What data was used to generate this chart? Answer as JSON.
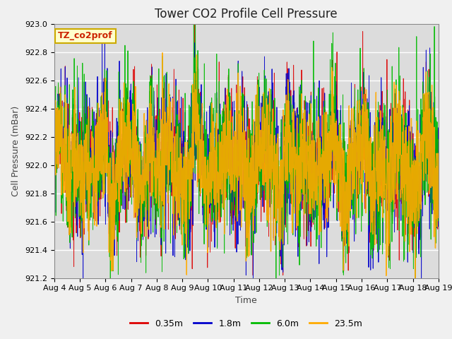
{
  "title": "Tower CO2 Profile Cell Pressure",
  "ylabel": "Cell Pressure (mBar)",
  "xlabel": "Time",
  "annotation": "TZ_co2prof",
  "ylim": [
    921.2,
    923.0
  ],
  "yticks": [
    921.2,
    921.4,
    921.6,
    921.8,
    922.0,
    922.2,
    922.4,
    922.6,
    922.8,
    923.0
  ],
  "x_tick_labels": [
    "Aug 4",
    "Aug 5",
    "Aug 6",
    "Aug 7",
    "Aug 8",
    "Aug 9",
    "Aug 10",
    "Aug 11",
    "Aug 12",
    "Aug 13",
    "Aug 14",
    "Aug 15",
    "Aug 16",
    "Aug 17",
    "Aug 18",
    "Aug 19"
  ],
  "series": [
    {
      "label": "0.35m",
      "color": "#dd0000",
      "lw": 0.7
    },
    {
      "label": "1.8m",
      "color": "#0000cc",
      "lw": 0.7
    },
    {
      "label": "6.0m",
      "color": "#00bb00",
      "lw": 0.7
    },
    {
      "label": "23.5m",
      "color": "#ffaa00",
      "lw": 1.0
    }
  ],
  "n_points": 2000,
  "base_mean": 922.0,
  "plot_bg": "#dcdcdc",
  "fig_bg": "#f0f0f0",
  "title_fontsize": 12,
  "label_fontsize": 9,
  "tick_fontsize": 8,
  "legend_fontsize": 9,
  "annotation_fontsize": 9,
  "annotation_color": "#cc2200",
  "annotation_bg": "#ffffcc",
  "annotation_border": "#ccaa00"
}
